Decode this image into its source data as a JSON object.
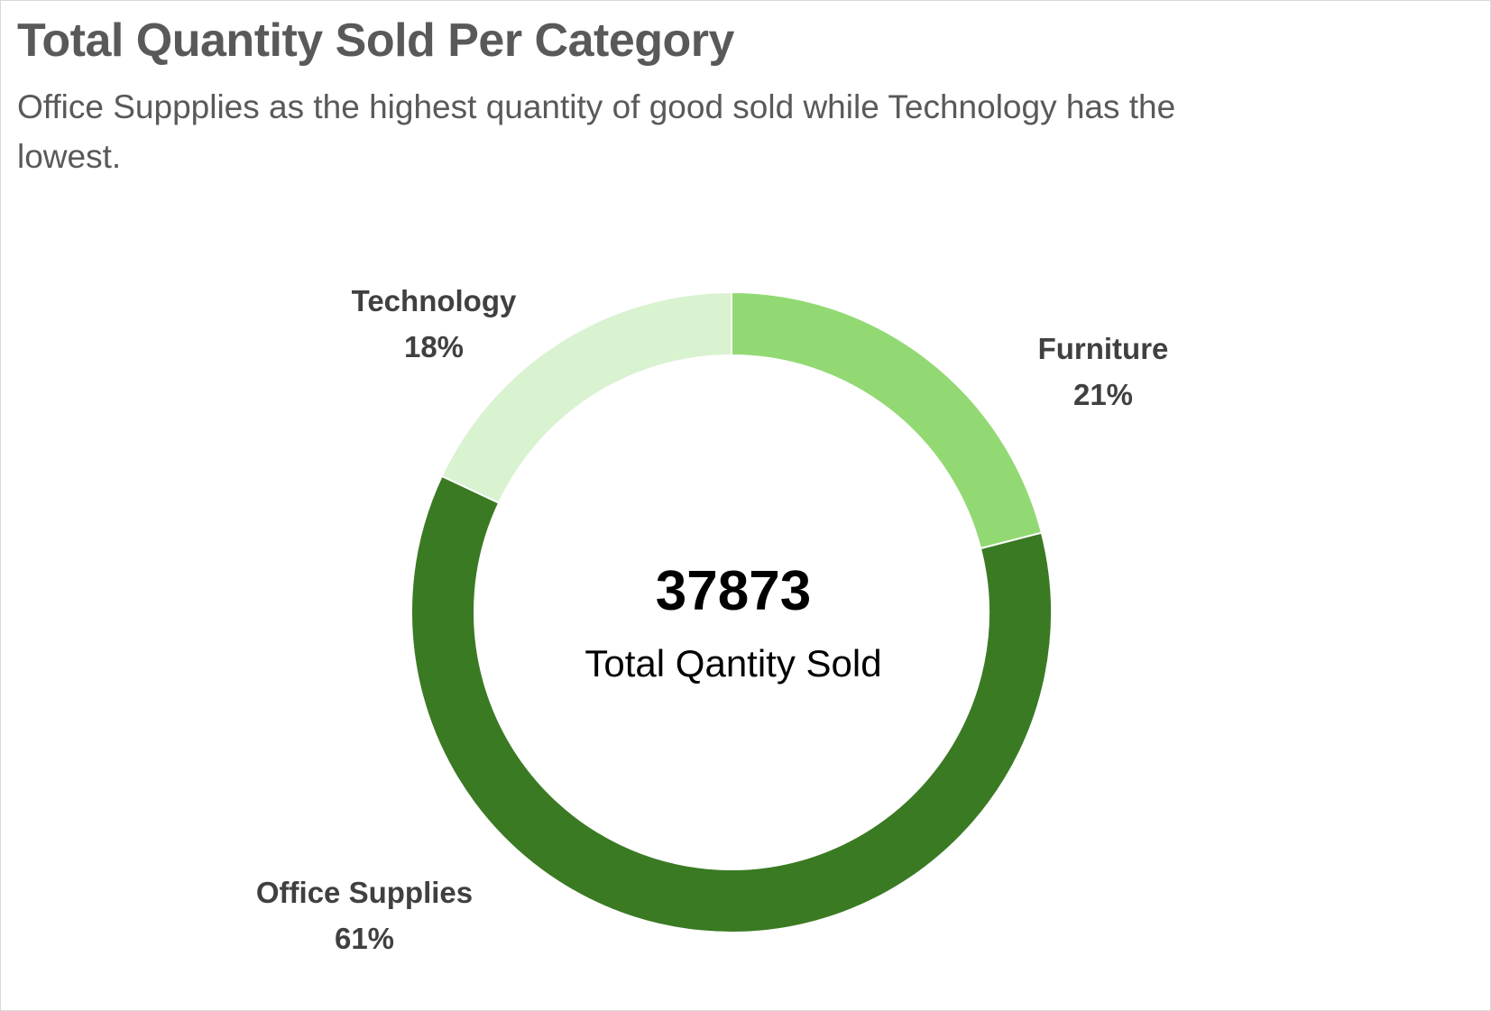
{
  "chart_data": {
    "type": "pie",
    "subtype": "donut",
    "title": "Total Quantity Sold Per Category",
    "subtitle": "Office Suppplies as the highest quantity of good sold while Technology has the lowest.",
    "center_value": "37873",
    "center_caption": "Total Qantity Sold",
    "slices": [
      {
        "category": "Furniture",
        "percent": 21,
        "label_percent": "21%",
        "color": "#92d973"
      },
      {
        "category": "Office Supplies",
        "percent": 61,
        "label_percent": "61%",
        "color": "#3a7a23"
      },
      {
        "category": "Technology",
        "percent": 18,
        "label_percent": "18%",
        "color": "#d9f2d0"
      }
    ],
    "legend": "none",
    "data_labels": "outside"
  }
}
